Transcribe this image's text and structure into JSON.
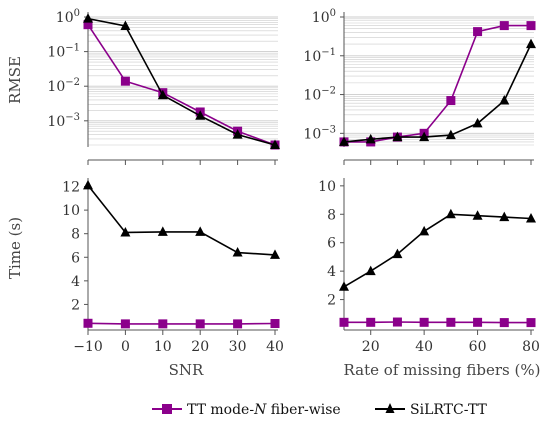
{
  "colors": {
    "tt": "#8B008B",
    "silrtc": "#000000",
    "grid": "#cccccc",
    "axis": "#555555"
  },
  "legend": {
    "tt": "TT mode-N fiber-wise",
    "tt_prefix": "TT mode-",
    "tt_italic": "N",
    "tt_suffix": " fiber-wise",
    "silrtc": "SiLRTC-TT"
  },
  "chart_data": [
    {
      "type": "line",
      "panel": "top-left",
      "ylabel": "RMSE",
      "xlabel": "",
      "yscale": "log",
      "ylim": [
        0.0002,
        1
      ],
      "yticks": [
        {
          "v": 1,
          "m": "10",
          "e": "0"
        },
        {
          "v": 0.1,
          "m": "10",
          "e": "−1"
        },
        {
          "v": 0.01,
          "m": "10",
          "e": "−2"
        },
        {
          "v": 0.001,
          "m": "10",
          "e": "−3"
        }
      ],
      "xlim": [
        -10,
        40
      ],
      "xticks": [
        -10,
        0,
        10,
        20,
        30,
        40
      ],
      "xtick_labels": [],
      "x": [
        -10,
        0,
        10,
        20,
        30,
        40
      ],
      "series": [
        {
          "key": "tt",
          "marker": "square",
          "values": [
            0.6,
            0.014,
            0.0065,
            0.0018,
            0.0005,
            0.0002
          ]
        },
        {
          "key": "silrtc",
          "marker": "triangle",
          "values": [
            0.9,
            0.55,
            0.0055,
            0.0014,
            0.0004,
            0.0002
          ]
        }
      ],
      "grid": true
    },
    {
      "type": "line",
      "panel": "top-right",
      "ylabel": "",
      "xlabel": "",
      "yscale": "log",
      "ylim": [
        0.0005,
        1
      ],
      "yticks": [
        {
          "v": 1,
          "m": "10",
          "e": "0"
        },
        {
          "v": 0.1,
          "m": "10",
          "e": "−1"
        },
        {
          "v": 0.01,
          "m": "10",
          "e": "−2"
        },
        {
          "v": 0.001,
          "m": "10",
          "e": "−3"
        }
      ],
      "xlim": [
        10,
        80
      ],
      "xticks": [
        10,
        20,
        30,
        40,
        50,
        60,
        70,
        80
      ],
      "xtick_labels": [],
      "x": [
        10,
        20,
        30,
        40,
        50,
        60,
        70,
        80
      ],
      "series": [
        {
          "key": "tt",
          "marker": "square",
          "values": [
            0.0006,
            0.0006,
            0.0008,
            0.001,
            0.007,
            0.42,
            0.6,
            0.6
          ]
        },
        {
          "key": "silrtc",
          "marker": "triangle",
          "values": [
            0.0006,
            0.0007,
            0.0008,
            0.0008,
            0.0009,
            0.0018,
            0.007,
            0.2
          ]
        }
      ],
      "grid": true
    },
    {
      "type": "line",
      "panel": "bottom-left",
      "ylabel": "Time (s)",
      "xlabel": "SNR",
      "yscale": "linear",
      "ylim": [
        0,
        12.3
      ],
      "yticks": [
        {
          "v": 2,
          "t": "2"
        },
        {
          "v": 4,
          "t": "4"
        },
        {
          "v": 6,
          "t": "6"
        },
        {
          "v": 8,
          "t": "8"
        },
        {
          "v": 10,
          "t": "10"
        },
        {
          "v": 12,
          "t": "12"
        }
      ],
      "xlim": [
        -10,
        40
      ],
      "xticks": [
        -10,
        0,
        10,
        20,
        30,
        40
      ],
      "xtick_labels": [
        "−10",
        "0",
        "10",
        "20",
        "30",
        "40"
      ],
      "x": [
        -10,
        0,
        10,
        20,
        30,
        40
      ],
      "series": [
        {
          "key": "tt",
          "marker": "square",
          "values": [
            0.4,
            0.35,
            0.35,
            0.35,
            0.35,
            0.38
          ]
        },
        {
          "key": "silrtc",
          "marker": "triangle",
          "values": [
            12.1,
            8.1,
            8.15,
            8.15,
            6.4,
            6.2
          ]
        }
      ],
      "grid": false
    },
    {
      "type": "line",
      "panel": "bottom-right",
      "ylabel": "",
      "xlabel": "Rate of missing fibers (%)",
      "yscale": "linear",
      "ylim": [
        0,
        10.2
      ],
      "yticks": [
        {
          "v": 2,
          "t": "2"
        },
        {
          "v": 4,
          "t": "4"
        },
        {
          "v": 6,
          "t": "6"
        },
        {
          "v": 8,
          "t": "8"
        },
        {
          "v": 10,
          "t": "10"
        }
      ],
      "xlim": [
        10,
        80
      ],
      "xticks": [
        20,
        40,
        60,
        80
      ],
      "xtick_labels": [
        "20",
        "40",
        "60",
        "80"
      ],
      "x": [
        10,
        20,
        30,
        40,
        50,
        60,
        70,
        80
      ],
      "series": [
        {
          "key": "tt",
          "marker": "square",
          "values": [
            0.4,
            0.4,
            0.42,
            0.4,
            0.4,
            0.4,
            0.38,
            0.38
          ]
        },
        {
          "key": "silrtc",
          "marker": "triangle",
          "values": [
            2.9,
            4.0,
            5.2,
            6.8,
            8.0,
            7.9,
            7.8,
            7.7
          ]
        }
      ],
      "grid": false
    }
  ]
}
